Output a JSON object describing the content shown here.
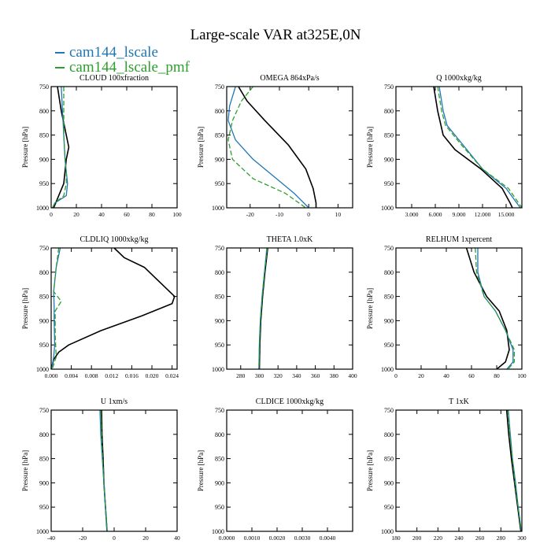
{
  "figure": {
    "title": "Large-scale VAR at325E,0N",
    "legend": [
      {
        "name": "cam144_lscale",
        "color": "#1f77b4"
      },
      {
        "name": "cam144_lscale_pmf",
        "color": "#2ca02c"
      }
    ]
  },
  "chart_data": [
    {
      "type": "line",
      "title": "CLOUD 100xfraction",
      "ylabel": "Pressure [hPa]",
      "xlim": [
        0,
        100
      ],
      "xticks": [
        0,
        20,
        40,
        60,
        80,
        100
      ],
      "xtick_labels": [
        "0",
        "20",
        "40",
        "60",
        "80",
        "100"
      ],
      "ylim": [
        1000,
        750
      ],
      "yticks": [
        750,
        800,
        850,
        900,
        950,
        1000
      ],
      "series": [
        {
          "color": "#000000",
          "dash": "",
          "x": [
            5,
            8,
            12,
            14,
            12,
            10,
            6,
            2
          ],
          "y": [
            750,
            800,
            850,
            875,
            900,
            950,
            975,
            1000
          ]
        },
        {
          "color": "#1f77b4",
          "dash": "",
          "x": [
            8,
            9,
            10,
            11,
            12,
            13,
            12,
            3,
            1
          ],
          "y": [
            750,
            800,
            850,
            900,
            925,
            950,
            975,
            990,
            1000
          ]
        },
        {
          "color": "#2ca02c",
          "dash": "6,3",
          "x": [
            10,
            10,
            10,
            11,
            12,
            12,
            10,
            3,
            1
          ],
          "y": [
            750,
            800,
            850,
            900,
            925,
            950,
            975,
            990,
            1000
          ]
        }
      ]
    },
    {
      "type": "line",
      "title": "OMEGA 864xPa/s",
      "ylabel": "Pressure [hPa]",
      "xlim": [
        -28,
        15
      ],
      "xticks": [
        -20,
        -10,
        0,
        10
      ],
      "xtick_labels": [
        "-20",
        "-10",
        "0",
        "10"
      ],
      "ylim": [
        1000,
        750
      ],
      "yticks": [
        750,
        800,
        850,
        900,
        950,
        1000
      ],
      "series": [
        {
          "color": "#000000",
          "dash": "",
          "x": [
            -24,
            -21,
            -15,
            -7,
            -1,
            1.5,
            2.5,
            2.5
          ],
          "y": [
            750,
            780,
            820,
            870,
            920,
            960,
            990,
            1000
          ]
        },
        {
          "color": "#1f77b4",
          "dash": "",
          "x": [
            -25,
            -27,
            -27.5,
            -25,
            -19,
            -11,
            -5,
            0
          ],
          "y": [
            750,
            790,
            820,
            860,
            900,
            940,
            970,
            1000
          ]
        },
        {
          "color": "#2ca02c",
          "dash": "6,3",
          "x": [
            -19,
            -23,
            -26,
            -27.5,
            -26,
            -19,
            -8,
            -1
          ],
          "y": [
            750,
            780,
            820,
            860,
            900,
            940,
            970,
            1000
          ]
        }
      ]
    },
    {
      "type": "line",
      "title": "Q 1000xkg/kg",
      "ylabel": "Pressure [hPa]",
      "xlim": [
        1,
        17
      ],
      "xticks": [
        3,
        6,
        9,
        12,
        15
      ],
      "xtick_labels": [
        "3.000",
        "6.000",
        "9.000",
        "12.000",
        "15.000"
      ],
      "ylim": [
        1000,
        750
      ],
      "yticks": [
        750,
        800,
        850,
        900,
        950,
        1000
      ],
      "series": [
        {
          "color": "#000000",
          "dash": "",
          "x": [
            5.8,
            6.3,
            7,
            8.5,
            11.8,
            14.5,
            15.5,
            15.8
          ],
          "y": [
            750,
            800,
            850,
            880,
            920,
            960,
            990,
            1000
          ]
        },
        {
          "color": "#1f77b4",
          "dash": "",
          "x": [
            6.5,
            7,
            7.5,
            9.5,
            12,
            15,
            16.8
          ],
          "y": [
            750,
            800,
            830,
            870,
            920,
            960,
            1000
          ]
        },
        {
          "color": "#2ca02c",
          "dash": "6,3",
          "x": [
            6.3,
            6.8,
            7.3,
            9.3,
            12,
            15.3,
            17
          ],
          "y": [
            750,
            800,
            830,
            870,
            920,
            960,
            1000
          ]
        }
      ]
    },
    {
      "type": "line",
      "title": "CLDLIQ 1000xkg/kg",
      "ylabel": "Pressure [hPa]",
      "xlim": [
        0,
        0.025
      ],
      "xticks": [
        0,
        0.004,
        0.008,
        0.012,
        0.016,
        0.02,
        0.024
      ],
      "xtick_labels": [
        "0.000",
        "0.004",
        "0.008",
        "0.012",
        "0.016",
        "0.020",
        "0.024"
      ],
      "ylim": [
        1000,
        750
      ],
      "yticks": [
        750,
        800,
        850,
        900,
        950,
        1000
      ],
      "series": [
        {
          "color": "#000000",
          "dash": "",
          "x": [
            0.0125,
            0.0145,
            0.0185,
            0.0215,
            0.0245,
            0.024,
            0.018,
            0.01,
            0.0035,
            0.0015,
            0.0005,
            0
          ],
          "y": [
            750,
            770,
            790,
            820,
            850,
            865,
            890,
            920,
            950,
            965,
            980,
            1000
          ]
        },
        {
          "color": "#1f77b4",
          "dash": "",
          "x": [
            0.0018,
            0.001,
            0.0005,
            0.0006,
            0.0006,
            0.0007,
            0.0005,
            0.0001
          ],
          "y": [
            750,
            790,
            840,
            870,
            900,
            950,
            975,
            1000
          ]
        },
        {
          "color": "#2ca02c",
          "dash": "6,3",
          "x": [
            0.0015,
            0.001,
            0.0005,
            0.002,
            0.0008,
            0.0008,
            0.001,
            0.0002
          ],
          "y": [
            750,
            790,
            840,
            860,
            880,
            930,
            975,
            1000
          ]
        }
      ]
    },
    {
      "type": "line",
      "title": "THETA 1.0xK",
      "ylabel": "",
      "xlim": [
        265,
        400
      ],
      "xticks": [
        280,
        300,
        320,
        340,
        360,
        380,
        400
      ],
      "xtick_labels": [
        "280",
        "300",
        "320",
        "340",
        "360",
        "380",
        "400"
      ],
      "ylim": [
        1000,
        750
      ],
      "yticks": [
        750,
        800,
        850,
        900,
        950,
        1000
      ],
      "series": [
        {
          "color": "#000000",
          "dash": "",
          "x": [
            309,
            306,
            303.5,
            301.5,
            300.5,
            300
          ],
          "y": [
            750,
            800,
            850,
            900,
            950,
            1000
          ]
        },
        {
          "color": "#1f77b4",
          "dash": "",
          "x": [
            308,
            305.5,
            303,
            301,
            300,
            299.5
          ],
          "y": [
            750,
            800,
            850,
            900,
            950,
            1000
          ]
        },
        {
          "color": "#2ca02c",
          "dash": "6,3",
          "x": [
            308.5,
            305.5,
            303,
            301,
            300,
            299.5
          ],
          "y": [
            750,
            800,
            850,
            900,
            950,
            1000
          ]
        }
      ]
    },
    {
      "type": "line",
      "title": "RELHUM 1xpercent",
      "ylabel": "Pressure [hPa]",
      "xlim": [
        0,
        100
      ],
      "xticks": [
        0,
        20,
        40,
        60,
        80,
        100
      ],
      "xtick_labels": [
        "0",
        "20",
        "40",
        "60",
        "80",
        "100"
      ],
      "ylim": [
        1000,
        750
      ],
      "yticks": [
        750,
        800,
        850,
        900,
        950,
        1000
      ],
      "series": [
        {
          "color": "#000000",
          "dash": "",
          "x": [
            56,
            62,
            72,
            82,
            88,
            90,
            87,
            80
          ],
          "y": [
            750,
            800,
            850,
            880,
            920,
            960,
            985,
            1000
          ]
        },
        {
          "color": "#1f77b4",
          "dash": "",
          "x": [
            65,
            65,
            70,
            79,
            87,
            93,
            93,
            88
          ],
          "y": [
            750,
            800,
            850,
            880,
            920,
            960,
            985,
            1000
          ]
        },
        {
          "color": "#2ca02c",
          "dash": "6,3",
          "x": [
            63,
            64,
            70,
            79,
            87,
            94,
            94,
            89
          ],
          "y": [
            750,
            800,
            850,
            880,
            920,
            960,
            985,
            1000
          ]
        }
      ]
    },
    {
      "type": "line",
      "title": "U 1xm/s",
      "ylabel": "Pressure [hPa]",
      "xlim": [
        -40,
        40
      ],
      "xticks": [
        -40,
        -20,
        0,
        20,
        40
      ],
      "xtick_labels": [
        "-40",
        "-20",
        "0",
        "20",
        "40"
      ],
      "ylim": [
        1000,
        750
      ],
      "yticks": [
        750,
        800,
        850,
        900,
        950,
        1000
      ],
      "series": [
        {
          "color": "#000000",
          "dash": "",
          "x": [
            -8,
            -7.7,
            -7,
            -6.5,
            -5.5,
            -4.5
          ],
          "y": [
            750,
            800,
            850,
            900,
            950,
            1000
          ]
        },
        {
          "color": "#1f77b4",
          "dash": "",
          "x": [
            -9,
            -8.5,
            -7.5,
            -6.5,
            -5.5,
            -4.5
          ],
          "y": [
            750,
            800,
            850,
            900,
            950,
            1000
          ]
        },
        {
          "color": "#2ca02c",
          "dash": "6,3",
          "x": [
            -8.5,
            -8,
            -7.3,
            -6.5,
            -5.5,
            -4.3
          ],
          "y": [
            750,
            800,
            850,
            900,
            950,
            1000
          ]
        }
      ]
    },
    {
      "type": "line",
      "title": "CLDICE 1000xkg/kg",
      "ylabel": "Pressure [hPa]",
      "xlim": [
        0,
        0.005
      ],
      "xticks": [
        0,
        0.001,
        0.002,
        0.003,
        0.004
      ],
      "xtick_labels": [
        "0.0000",
        "0.0010",
        "0.0020",
        "0.0030",
        "0.0040"
      ],
      "ylim": [
        1000,
        750
      ],
      "yticks": [
        750,
        800,
        850,
        900,
        950,
        1000
      ],
      "series": []
    },
    {
      "type": "line",
      "title": "T 1xK",
      "ylabel": "Pressure [hPa]",
      "xlim": [
        180,
        300
      ],
      "xticks": [
        180,
        200,
        220,
        240,
        260,
        280,
        300
      ],
      "xtick_labels": [
        "180",
        "200",
        "220",
        "240",
        "260",
        "280",
        "300"
      ],
      "ylim": [
        1000,
        750
      ],
      "yticks": [
        750,
        800,
        850,
        900,
        950,
        1000
      ],
      "series": [
        {
          "color": "#000000",
          "dash": "",
          "x": [
            285.5,
            287.5,
            290,
            293,
            296,
            299
          ],
          "y": [
            750,
            800,
            850,
            900,
            950,
            1000
          ]
        },
        {
          "color": "#1f77b4",
          "dash": "",
          "x": [
            287,
            289,
            291,
            294,
            296.5,
            299.5
          ],
          "y": [
            750,
            800,
            850,
            900,
            950,
            1000
          ]
        },
        {
          "color": "#2ca02c",
          "dash": "6,3",
          "x": [
            286.5,
            288.5,
            291,
            293.5,
            296.5,
            299.5
          ],
          "y": [
            750,
            800,
            850,
            900,
            950,
            1000
          ]
        }
      ]
    }
  ]
}
